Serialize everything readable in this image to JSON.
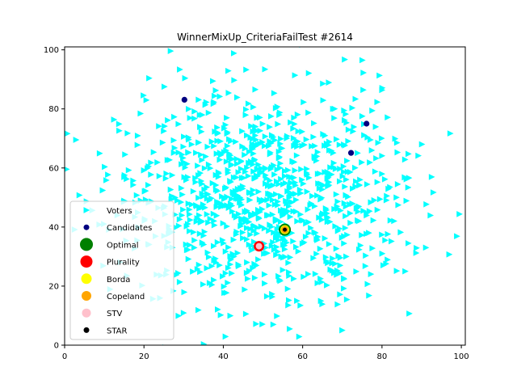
{
  "chart_data": {
    "type": "scatter",
    "title": "WinnerMixUp_CriteriaFailTest #2614",
    "xlabel": "",
    "ylabel": "",
    "xlim": [
      0,
      101
    ],
    "ylim": [
      0,
      101
    ],
    "xticks": [
      0,
      20,
      40,
      60,
      80,
      100
    ],
    "yticks": [
      0,
      20,
      40,
      60,
      80,
      100
    ],
    "grid": false,
    "legend_position": "lower-left",
    "series": [
      {
        "name": "Voters",
        "marker": "triangle-right",
        "color": "#00ffff",
        "points": "generated-cloud",
        "count": 1000,
        "center": [
          50,
          50
        ],
        "spread": 18
      },
      {
        "name": "Candidates",
        "marker": "circle",
        "color": "#000080",
        "points": [
          [
            30.2,
            83.1
          ],
          [
            76.1,
            75.0
          ],
          [
            72.2,
            65.1
          ],
          [
            55.4,
            39.0
          ]
        ]
      },
      {
        "name": "Optimal",
        "marker": "circle",
        "color": "#008000",
        "points": [
          [
            55.5,
            39.1
          ]
        ]
      },
      {
        "name": "Plurality",
        "marker": "circle",
        "color": "#ff0000",
        "points": [
          [
            49.0,
            33.5
          ]
        ]
      },
      {
        "name": "Borda",
        "marker": "circle",
        "color": "#ffff00",
        "points": [
          [
            55.5,
            39.1
          ]
        ]
      },
      {
        "name": "Copeland",
        "marker": "circle",
        "color": "#ffa500",
        "points": [
          [
            55.5,
            39.1
          ]
        ]
      },
      {
        "name": "STV",
        "marker": "circle",
        "color": "#ffc0cb",
        "points": [
          [
            49.0,
            33.5
          ]
        ]
      },
      {
        "name": "STAR",
        "marker": "circle",
        "color": "#000000",
        "points": [
          [
            55.5,
            39.1
          ]
        ]
      }
    ]
  }
}
